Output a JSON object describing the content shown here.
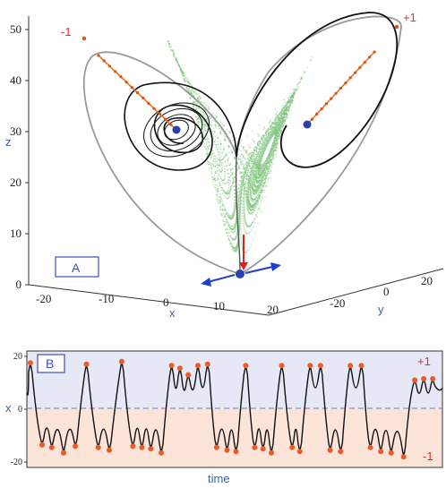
{
  "chart_data": [
    {
      "panel": "A",
      "type": "scatter",
      "title": "",
      "z_label": "z",
      "x_label": "x",
      "y_label": "y",
      "z_ticks": [
        "0",
        "10",
        "20",
        "30",
        "40",
        "50"
      ],
      "x_ticks": [
        "-20",
        "-10",
        "0",
        "10",
        "20"
      ],
      "y_ticks": [
        "-20",
        "0",
        "20"
      ],
      "fixed_point_labels": [
        "-1",
        "+1"
      ],
      "colors": {
        "attractor": "#7cc47a",
        "orbit": "#111111",
        "unstable": "#e8731f",
        "arrow_red": "#e0201b",
        "arrow_blue": "#1c3fd0",
        "fixed_point": "#2a3fb0"
      }
    },
    {
      "panel": "B",
      "type": "line",
      "xlabel": "time",
      "ylabel": "x",
      "ylim": [
        -22,
        22
      ],
      "yticks": [
        "20",
        "0",
        "-20"
      ],
      "region_labels": {
        "upper": "+1",
        "lower": "-1"
      },
      "peaks": [
        {
          "t": 0.5,
          "x": 17.5
        },
        {
          "t": 2.2,
          "x": -13.5
        },
        {
          "t": 3.6,
          "x": -14.5
        },
        {
          "t": 5.3,
          "x": -16.5
        },
        {
          "t": 7.0,
          "x": -14.0
        },
        {
          "t": 8.6,
          "x": 17.0
        },
        {
          "t": 10.3,
          "x": -14.5
        },
        {
          "t": 11.9,
          "x": -15.5
        },
        {
          "t": 13.7,
          "x": 18.0
        },
        {
          "t": 15.3,
          "x": -14.0
        },
        {
          "t": 16.6,
          "x": -14.5
        },
        {
          "t": 17.9,
          "x": -15.0
        },
        {
          "t": 19.4,
          "x": -16.5
        },
        {
          "t": 20.9,
          "x": 16.5
        },
        {
          "t": 22.1,
          "x": 15.5
        },
        {
          "t": 23.3,
          "x": 13.0
        },
        {
          "t": 24.7,
          "x": 16.5
        },
        {
          "t": 26.1,
          "x": 17.0
        },
        {
          "t": 27.4,
          "x": -14.5
        },
        {
          "t": 28.9,
          "x": -15.5
        },
        {
          "t": 30.2,
          "x": -16.0
        },
        {
          "t": 31.6,
          "x": 16.5
        },
        {
          "t": 32.9,
          "x": -14.5
        },
        {
          "t": 34.1,
          "x": -15.0
        },
        {
          "t": 35.3,
          "x": -16.5
        },
        {
          "t": 36.8,
          "x": 16.5
        },
        {
          "t": 38.3,
          "x": -14.5
        },
        {
          "t": 39.4,
          "x": -16.0
        },
        {
          "t": 40.9,
          "x": 16.5
        },
        {
          "t": 42.4,
          "x": 16.5
        },
        {
          "t": 43.8,
          "x": -15.5
        },
        {
          "t": 45.3,
          "x": -16.0
        },
        {
          "t": 46.7,
          "x": 16.5
        },
        {
          "t": 48.3,
          "x": 16.5
        },
        {
          "t": 49.6,
          "x": -14.5
        },
        {
          "t": 51.1,
          "x": -16.0
        },
        {
          "t": 52.6,
          "x": -16.5
        },
        {
          "t": 54.4,
          "x": -18.0
        },
        {
          "t": 56.0,
          "x": 11.0
        },
        {
          "t": 57.3,
          "x": 11.5
        },
        {
          "t": 58.6,
          "x": 11.5
        }
      ],
      "t_range": [
        0,
        60
      ]
    }
  ]
}
